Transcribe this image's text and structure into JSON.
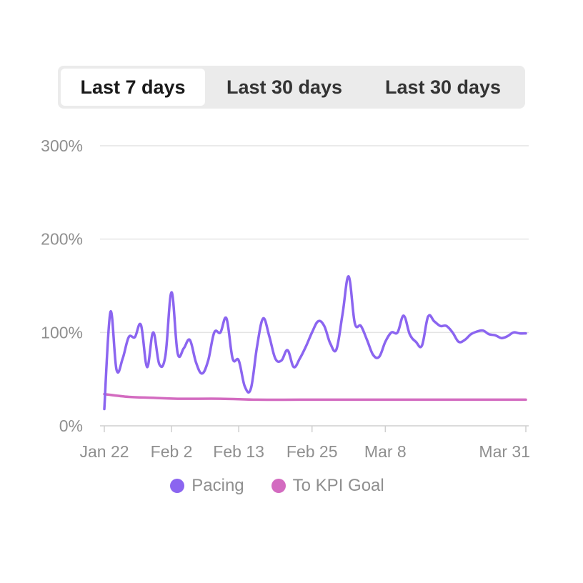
{
  "range_tabs": [
    {
      "label": "Last 7 days",
      "active": true
    },
    {
      "label": "Last 30 days",
      "active": false
    },
    {
      "label": "Last 30 days",
      "active": false
    }
  ],
  "colors": {
    "pacing": "#8b65f0",
    "kpi": "#d36bc0",
    "grid": "#e4e4e4",
    "axis": "#cfcfcf",
    "tick_text": "#8f8f8f"
  },
  "chart_data": {
    "type": "line",
    "ylim": [
      0,
      300
    ],
    "y_ticks": [
      {
        "value": 0,
        "label": "0%"
      },
      {
        "value": 100,
        "label": "100%"
      },
      {
        "value": 200,
        "label": "200%"
      },
      {
        "value": 300,
        "label": "300%"
      }
    ],
    "x_range": [
      "2024-01-22",
      "2024-03-31"
    ],
    "x_ticks": [
      {
        "date": "2024-01-22",
        "label": "Jan 22"
      },
      {
        "date": "2024-02-02",
        "label": "Feb 2"
      },
      {
        "date": "2024-02-13",
        "label": "Feb 13"
      },
      {
        "date": "2024-02-25",
        "label": "Feb 25"
      },
      {
        "date": "2024-03-08",
        "label": "Mar 8"
      },
      {
        "date": "2024-03-31",
        "label": "Mar 31"
      }
    ],
    "legend_position": "bottom",
    "series": [
      {
        "name": "Pacing",
        "color_key": "pacing",
        "points": [
          [
            "2024-01-22",
            18
          ],
          [
            "2024-01-23",
            122
          ],
          [
            "2024-01-24",
            60
          ],
          [
            "2024-01-25",
            72
          ],
          [
            "2024-01-26",
            95
          ],
          [
            "2024-01-27",
            95
          ],
          [
            "2024-01-28",
            108
          ],
          [
            "2024-01-29",
            63
          ],
          [
            "2024-01-30",
            100
          ],
          [
            "2024-01-31",
            66
          ],
          [
            "2024-02-01",
            75
          ],
          [
            "2024-02-02",
            143
          ],
          [
            "2024-02-03",
            78
          ],
          [
            "2024-02-04",
            83
          ],
          [
            "2024-02-05",
            92
          ],
          [
            "2024-02-06",
            68
          ],
          [
            "2024-02-07",
            56
          ],
          [
            "2024-02-08",
            70
          ],
          [
            "2024-02-09",
            100
          ],
          [
            "2024-02-10",
            100
          ],
          [
            "2024-02-11",
            115
          ],
          [
            "2024-02-12",
            72
          ],
          [
            "2024-02-13",
            70
          ],
          [
            "2024-02-14",
            42
          ],
          [
            "2024-02-15",
            40
          ],
          [
            "2024-02-16",
            85
          ],
          [
            "2024-02-17",
            115
          ],
          [
            "2024-02-18",
            96
          ],
          [
            "2024-02-19",
            72
          ],
          [
            "2024-02-20",
            70
          ],
          [
            "2024-02-21",
            81
          ],
          [
            "2024-02-22",
            63
          ],
          [
            "2024-02-23",
            72
          ],
          [
            "2024-02-24",
            85
          ],
          [
            "2024-02-25",
            100
          ],
          [
            "2024-02-26",
            112
          ],
          [
            "2024-02-27",
            107
          ],
          [
            "2024-02-28",
            88
          ],
          [
            "2024-02-29",
            82
          ],
          [
            "2024-03-01",
            120
          ],
          [
            "2024-03-02",
            160
          ],
          [
            "2024-03-03",
            110
          ],
          [
            "2024-03-04",
            107
          ],
          [
            "2024-03-05",
            92
          ],
          [
            "2024-03-06",
            76
          ],
          [
            "2024-03-07",
            74
          ],
          [
            "2024-03-08",
            90
          ],
          [
            "2024-03-09",
            100
          ],
          [
            "2024-03-10",
            100
          ],
          [
            "2024-03-11",
            118
          ],
          [
            "2024-03-12",
            98
          ],
          [
            "2024-03-13",
            90
          ],
          [
            "2024-03-14",
            86
          ],
          [
            "2024-03-15",
            117
          ],
          [
            "2024-03-16",
            112
          ],
          [
            "2024-03-17",
            107
          ],
          [
            "2024-03-18",
            107
          ],
          [
            "2024-03-19",
            100
          ],
          [
            "2024-03-20",
            90
          ],
          [
            "2024-03-21",
            92
          ],
          [
            "2024-03-22",
            98
          ],
          [
            "2024-03-23",
            101
          ],
          [
            "2024-03-24",
            102
          ],
          [
            "2024-03-25",
            98
          ],
          [
            "2024-03-26",
            97
          ],
          [
            "2024-03-27",
            94
          ],
          [
            "2024-03-28",
            96
          ],
          [
            "2024-03-29",
            100
          ],
          [
            "2024-03-30",
            99
          ],
          [
            "2024-03-31",
            99
          ]
        ]
      },
      {
        "name": "To KPI Goal",
        "color_key": "kpi",
        "points": [
          [
            "2024-01-22",
            34
          ],
          [
            "2024-01-26",
            31
          ],
          [
            "2024-01-30",
            30
          ],
          [
            "2024-02-03",
            29
          ],
          [
            "2024-02-10",
            29
          ],
          [
            "2024-02-16",
            28
          ],
          [
            "2024-02-23",
            28
          ],
          [
            "2024-03-02",
            28
          ],
          [
            "2024-03-10",
            28
          ],
          [
            "2024-03-20",
            28
          ],
          [
            "2024-03-31",
            28
          ]
        ]
      }
    ]
  }
}
